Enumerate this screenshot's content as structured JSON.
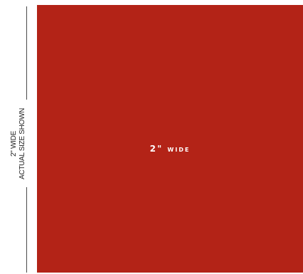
{
  "side_caption": {
    "line1": "2\" WIDE",
    "line2": "ACTUAL SIZE SHOWN"
  },
  "swatch": {
    "label": "2\" wide",
    "color": "#b32317"
  }
}
